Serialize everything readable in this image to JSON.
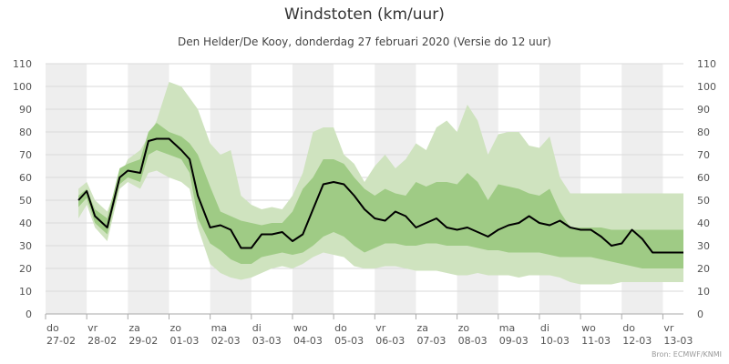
{
  "chart_data": {
    "type": "area",
    "title": "Windstoten (km/uur)",
    "subtitle": "Den Helder/De Kooy, donderdag 27 februari 2020 (Versie do 12 uur)",
    "credits": "Bron: ECMWF/KNMI",
    "ylim": [
      0,
      110
    ],
    "yticks": [
      0,
      10,
      20,
      30,
      40,
      50,
      60,
      70,
      80,
      90,
      100,
      110
    ],
    "xlim": [
      0,
      15.5
    ],
    "x_ticks": [
      {
        "day": "do",
        "date": "27-02"
      },
      {
        "day": "vr",
        "date": "28-02"
      },
      {
        "day": "za",
        "date": "29-02"
      },
      {
        "day": "zo",
        "date": "01-03"
      },
      {
        "day": "ma",
        "date": "02-03"
      },
      {
        "day": "di",
        "date": "03-03"
      },
      {
        "day": "wo",
        "date": "04-03"
      },
      {
        "day": "do",
        "date": "05-03"
      },
      {
        "day": "vr",
        "date": "06-03"
      },
      {
        "day": "za",
        "date": "07-03"
      },
      {
        "day": "zo",
        "date": "08-03"
      },
      {
        "day": "ma",
        "date": "09-03"
      },
      {
        "day": "di",
        "date": "10-03"
      },
      {
        "day": "wo",
        "date": "11-03"
      },
      {
        "day": "do",
        "date": "12-03"
      },
      {
        "day": "vr",
        "date": "13-03"
      }
    ],
    "x": [
      0.8,
      1.0,
      1.2,
      1.5,
      1.8,
      2.0,
      2.3,
      2.5,
      2.7,
      3.0,
      3.3,
      3.5,
      3.7,
      4.0,
      4.25,
      4.5,
      4.75,
      5.0,
      5.25,
      5.5,
      5.75,
      6.0,
      6.25,
      6.5,
      6.75,
      7.0,
      7.25,
      7.5,
      7.75,
      8.0,
      8.25,
      8.5,
      8.75,
      9.0,
      9.25,
      9.5,
      9.75,
      10.0,
      10.25,
      10.5,
      10.75,
      11.0,
      11.25,
      11.5,
      11.75,
      12.0,
      12.25,
      12.5,
      12.75,
      13.0,
      13.25,
      13.5,
      13.75,
      14.0,
      14.25,
      14.5,
      14.75,
      15.0,
      15.25,
      15.5
    ],
    "series": [
      {
        "role": "outer_upper",
        "color": "#cfe3bf",
        "values": [
          55,
          58,
          50,
          45,
          60,
          68,
          72,
          78,
          85,
          102,
          100,
          95,
          90,
          75,
          70,
          72,
          52,
          48,
          46,
          47,
          46,
          52,
          62,
          80,
          82,
          82,
          70,
          66,
          58,
          65,
          70,
          64,
          68,
          75,
          72,
          82,
          85,
          80,
          92,
          85,
          70,
          79,
          80,
          80,
          74,
          73,
          78,
          60,
          53,
          53,
          53,
          53,
          53,
          53,
          53,
          53,
          53,
          53,
          53,
          53
        ]
      },
      {
        "role": "inner_upper",
        "color": "#9fcb85",
        "values": [
          52,
          55,
          46,
          42,
          64,
          66,
          68,
          80,
          84,
          80,
          78,
          75,
          70,
          56,
          45,
          43,
          41,
          40,
          39,
          40,
          40,
          45,
          55,
          60,
          68,
          68,
          66,
          60,
          55,
          52,
          55,
          53,
          52,
          58,
          56,
          58,
          58,
          57,
          62,
          58,
          50,
          57,
          56,
          55,
          53,
          52,
          55,
          45,
          38,
          38,
          38,
          38,
          37,
          37,
          37,
          37,
          37,
          37,
          37,
          37
        ]
      },
      {
        "role": "median",
        "color": "#000000",
        "values": [
          50,
          54,
          43,
          38,
          60,
          63,
          62,
          76,
          77,
          77,
          72,
          68,
          52,
          38,
          39,
          37,
          29,
          29,
          35,
          35,
          36,
          32,
          35,
          46,
          57,
          58,
          57,
          52,
          46,
          42,
          41,
          45,
          43,
          38,
          40,
          42,
          38,
          37,
          38,
          36,
          34,
          37,
          39,
          40,
          43,
          40,
          39,
          41,
          38,
          37,
          37,
          34,
          30,
          31,
          37,
          33,
          27,
          27,
          27,
          27
        ]
      },
      {
        "role": "inner_lower",
        "color": "#9fcb85",
        "values": [
          47,
          51,
          40,
          35,
          57,
          60,
          58,
          70,
          72,
          70,
          68,
          62,
          42,
          31,
          28,
          24,
          22,
          22,
          25,
          26,
          27,
          26,
          27,
          30,
          34,
          36,
          34,
          30,
          27,
          29,
          31,
          31,
          30,
          30,
          31,
          31,
          30,
          30,
          30,
          29,
          28,
          28,
          27,
          27,
          27,
          27,
          26,
          25,
          25,
          25,
          25,
          24,
          23,
          22,
          21,
          20,
          20,
          20,
          20,
          20
        ]
      },
      {
        "role": "outer_lower",
        "color": "#cfe3bf",
        "values": [
          42,
          48,
          38,
          32,
          55,
          58,
          55,
          62,
          63,
          60,
          58,
          55,
          38,
          22,
          18,
          16,
          15,
          16,
          18,
          20,
          21,
          20,
          22,
          25,
          27,
          26,
          25,
          21,
          20,
          20,
          21,
          21,
          20,
          19,
          19,
          19,
          18,
          17,
          17,
          18,
          17,
          17,
          17,
          16,
          17,
          17,
          17,
          16,
          14,
          13,
          13,
          13,
          13,
          14,
          14,
          14,
          14,
          14,
          14,
          14
        ]
      }
    ]
  }
}
